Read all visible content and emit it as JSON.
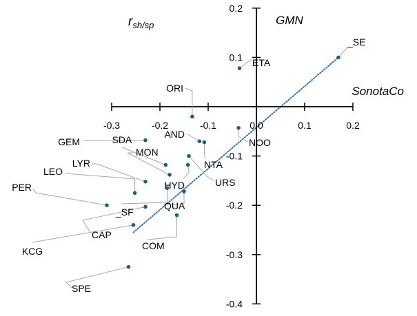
{
  "chart_data": {
    "type": "scatter",
    "title": "r_sh/sp",
    "title_main": "r",
    "title_sub": "sh/sp",
    "xlabel": "SonotaCo",
    "ylabel": "GMN",
    "xlim": [
      -0.3,
      0.2
    ],
    "ylim": [
      -0.4,
      0.2
    ],
    "x_ticks": [
      -0.3,
      -0.2,
      -0.1,
      0.0,
      0.1,
      0.2
    ],
    "y_ticks": [
      -0.4,
      -0.3,
      -0.2,
      -0.1,
      0.0,
      0.1,
      0.2
    ],
    "x_tick_labels": [
      "-0.3",
      "-0.2",
      "-0.1",
      "0.0",
      "0.1",
      "0.2"
    ],
    "y_tick_labels": [
      "-0.4",
      "-0.3",
      "-0.2",
      "-0.1",
      "0.0",
      "0.1",
      "0.2"
    ],
    "grid": false,
    "marker_color": "#1f5f7a",
    "trendline": {
      "style": "dotted",
      "color": "#2e75b6",
      "x": [
        -0.255,
        0.17
      ],
      "y": [
        -0.255,
        0.1
      ]
    },
    "points": [
      {
        "label": "_SE",
        "x": 0.17,
        "y": 0.1
      },
      {
        "label": "ETA",
        "x": -0.035,
        "y": 0.078
      },
      {
        "label": "ORI",
        "x": -0.133,
        "y": -0.02
      },
      {
        "label": "NOO",
        "x": -0.037,
        "y": -0.043
      },
      {
        "label": "AND",
        "x": -0.118,
        "y": -0.07
      },
      {
        "label": "NTA",
        "x": -0.108,
        "y": -0.072
      },
      {
        "label": "URS",
        "x": -0.14,
        "y": -0.1
      },
      {
        "label": "HYD",
        "x": -0.142,
        "y": -0.118
      },
      {
        "label": "GEM",
        "x": -0.23,
        "y": -0.068
      },
      {
        "label": "SDA",
        "x": -0.188,
        "y": -0.118
      },
      {
        "label": "MON",
        "x": -0.18,
        "y": -0.138
      },
      {
        "label": "LYR",
        "x": -0.23,
        "y": -0.152
      },
      {
        "label": "LEO",
        "x": -0.252,
        "y": -0.175
      },
      {
        "label": "PER",
        "x": -0.31,
        "y": -0.2
      },
      {
        "label": "_SF",
        "x": -0.185,
        "y": -0.165
      },
      {
        "label": "QUA",
        "x": -0.15,
        "y": -0.172
      },
      {
        "label": "CAP",
        "x": -0.23,
        "y": -0.203
      },
      {
        "label": "COM",
        "x": -0.165,
        "y": -0.22
      },
      {
        "label": "KCG",
        "x": -0.255,
        "y": -0.24
      },
      {
        "label": "SPE",
        "x": -0.265,
        "y": -0.325
      }
    ]
  }
}
